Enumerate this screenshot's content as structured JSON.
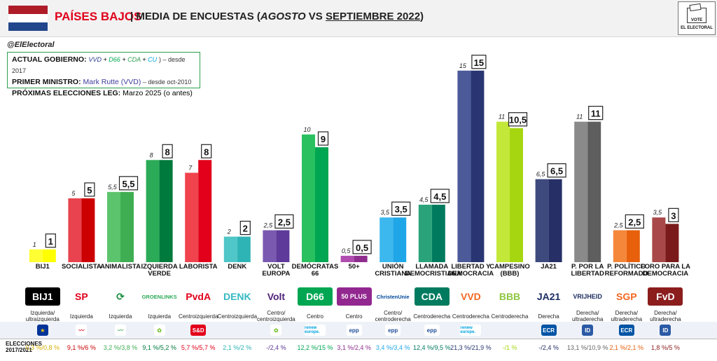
{
  "header": {
    "title": "PAÍSES BAJOS",
    "sep": "|",
    "subtitle_a": "MEDIA DE ENCUESTAS (",
    "subtitle_b": "AGOSTO",
    "subtitle_c": " VS ",
    "subtitle_d": "SEPTIEMBRE 2022",
    "subtitle_e": ")",
    "vote_text": "VOTE",
    "brand": "EL ELECTORAL"
  },
  "handle": "@ElElectoral",
  "info": {
    "gov_label": "ACTUAL GOBIERNO:",
    "gov_vvd": "VVD",
    "gov_d66": "D66",
    "gov_cda": "CDA",
    "gov_cu": "CU",
    "gov_plus": "+",
    "gov_tail": ") – desde 2017",
    "pm_label": "PRIMER MINISTRO:",
    "pm_value": "Mark Rutte (VVD)",
    "pm_date": " – desde oct-2010",
    "elec_label": "PRÓXIMAS ELECCIONES LEG:",
    "elec_value": "Marzo 2025 (o antes)"
  },
  "colors": {
    "flag_red": "#ae1c28",
    "flag_white": "#ffffff",
    "flag_blue": "#21468b"
  },
  "chart_data": {
    "type": "bar",
    "categories": [
      "BIJ1",
      "SOCIALISTA",
      "ANIMALISTA",
      "IZQUIERDA VERDE",
      "LABORISTA",
      "DENK",
      "VOLT EUROPA",
      "DEMÓCRATAS 66",
      "50+",
      "UNIÓN CRISTIANA",
      "LLAMADA DEMOCRISTIANA",
      "LIBERTAD Y DEMOCRACIA",
      "CAMPESINO (BBB)",
      "JA21",
      "P. POR LA LIBERTAD",
      "P. POLÍTICO REFORMADO",
      "FORO PARA LA DEMOCRACIA"
    ],
    "series": [
      {
        "name": "AGOSTO",
        "values": [
          1,
          5,
          5.5,
          8,
          7,
          2,
          2.5,
          10,
          0.5,
          3.5,
          4.5,
          15,
          11,
          6.5,
          11,
          2.5,
          3.5
        ]
      },
      {
        "name": "SEPTIEMBRE 2022",
        "values": [
          1,
          5,
          5.5,
          8,
          8,
          2,
          2.5,
          9,
          0.5,
          3.5,
          4.5,
          15,
          10.5,
          6.5,
          11,
          2.5,
          3
        ]
      }
    ],
    "value_labels_prev": [
      "1",
      "5",
      "5,5",
      "8",
      "7",
      "2",
      "2,5",
      "10",
      "0,5",
      "3,5",
      "4,5",
      "15",
      "11",
      "6,5",
      "11",
      "2,5",
      "3,5"
    ],
    "value_labels_curr": [
      "1",
      "5",
      "5,5",
      "8",
      "8",
      "2",
      "2,5",
      "9",
      "0,5",
      "3,5",
      "4,5",
      "15",
      "10,5",
      "6,5",
      "11",
      "2,5",
      "3"
    ],
    "colors_light": [
      "#ffff33",
      "#e8434e",
      "#5cc46c",
      "#2bab57",
      "#f0434e",
      "#4fc6c8",
      "#7a5ab0",
      "#29c05f",
      "#b04cb0",
      "#3cb8ee",
      "#2aa37a",
      "#4c5a9a",
      "#c4e83a",
      "#3e4a7e",
      "#8a8a8a",
      "#f5873a",
      "#a84848"
    ],
    "colors_dark": [
      "#ffff00",
      "#cc0000",
      "#3fae52",
      "#007a3d",
      "#e2001a",
      "#2fb4b6",
      "#5e3a9a",
      "#00a651",
      "#8e2d8e",
      "#1fa6e8",
      "#007a5e",
      "#283572",
      "#a6d610",
      "#262f66",
      "#5e5e5e",
      "#e8600c",
      "#7a1a1a"
    ],
    "ylim": [
      0,
      15.7
    ]
  },
  "labels_display": [
    "BIJ1",
    "SOCIALISTA",
    "ANIMALISTA",
    "IZQUIERDA\nVERDE",
    "LABORISTA",
    "DENK",
    "VOLT\nEUROPA",
    "DEMÓCRATAS\n66",
    "50+",
    "UNIÓN\nCRISTIANA",
    "LLAMADA\nDEMOCRISTIANA",
    "LIBERTAD Y\nDEMOCRACIA",
    "CAMPESINO\n(BBB)",
    "JA21",
    "P. POR LA\nLIBERTAD",
    "P. POLÍTICO\nREFORMADO",
    "FORO PARA LA\nDEMOCRACIA"
  ],
  "logos": [
    {
      "text": "BIJ1",
      "fg": "#ffffff",
      "bg": "#000000"
    },
    {
      "text": "SP",
      "fg": "#e2001a",
      "bg": "#ffffff"
    },
    {
      "text": "⟳",
      "fg": "#0f8a3a",
      "bg": "#ffffff"
    },
    {
      "text": "GROENLINKS",
      "fg": "#2bab57",
      "bg": "#ffffff"
    },
    {
      "text": "PvdA",
      "fg": "#e2001a",
      "bg": "#ffffff"
    },
    {
      "text": "DENK",
      "fg": "#35b9c2",
      "bg": "#ffffff"
    },
    {
      "text": "Volt",
      "fg": "#502379",
      "bg": "#ffffff"
    },
    {
      "text": "D66",
      "fg": "#ffffff",
      "bg": "#00a651"
    },
    {
      "text": "50 PLUS",
      "fg": "#ffffff",
      "bg": "#92278f"
    },
    {
      "text": "ChristenUnie",
      "fg": "#00489a",
      "bg": "#ffffff"
    },
    {
      "text": "CDA",
      "fg": "#ffffff",
      "bg": "#007b5f"
    },
    {
      "text": "VVD",
      "fg": "#f26722",
      "bg": "#ffffff"
    },
    {
      "text": "BBB",
      "fg": "#8dc63f",
      "bg": "#ffffff"
    },
    {
      "text": "JA21",
      "fg": "#1b2d61",
      "bg": "#ffffff"
    },
    {
      "text": "VRIJHEID",
      "fg": "#1b2d61",
      "bg": "#ffffff"
    },
    {
      "text": "SGP",
      "fg": "#f26722",
      "bg": "#ffffff"
    },
    {
      "text": "FvD",
      "fg": "#ffffff",
      "bg": "#8b1d1d"
    }
  ],
  "ideologies": [
    "Izquierda/\nultraizquierda",
    "Izquierda",
    "Izquierda",
    "Izquierda",
    "Centroizquierda",
    "Centroizquierda",
    "Centro/\ncentroizquierda",
    "Centro",
    "Centro",
    "Centro/\ncentroderecha",
    "Centroderecha",
    "Centroderecha",
    "Centroderecha",
    "Derecha",
    "Derecha/\nultraderecha",
    "Derecha/\nultraderecha",
    "Derecha/\nultraderecha"
  ],
  "eu_groups": [
    {
      "text": "★",
      "fg": "#ffcc00",
      "bg": "#003399"
    },
    {
      "text": "〰",
      "fg": "#e2001a",
      "bg": "#ffffff"
    },
    {
      "text": "〰",
      "fg": "#3fae52",
      "bg": "#ffffff"
    },
    {
      "text": "✿",
      "fg": "#57b400",
      "bg": "#ffffff"
    },
    {
      "text": "S&D",
      "fg": "#ffffff",
      "bg": "#e2001a"
    },
    {
      "text": "",
      "fg": "#000000",
      "bg": "transparent"
    },
    {
      "text": "✿",
      "fg": "#57b400",
      "bg": "#ffffff"
    },
    {
      "text": "renew europe.",
      "fg": "#00a3e0",
      "bg": "#ffffff"
    },
    {
      "text": "epp",
      "fg": "#1f4e99",
      "bg": "#ffffff"
    },
    {
      "text": "epp",
      "fg": "#1f4e99",
      "bg": "#ffffff"
    },
    {
      "text": "epp",
      "fg": "#1f4e99",
      "bg": "#ffffff"
    },
    {
      "text": "renew europe.",
      "fg": "#00a3e0",
      "bg": "#ffffff"
    },
    {
      "text": "",
      "fg": "#000000",
      "bg": "transparent"
    },
    {
      "text": "ECR",
      "fg": "#ffffff",
      "bg": "#0054a5"
    },
    {
      "text": "ID",
      "fg": "#ffffff",
      "bg": "#2b5aa5"
    },
    {
      "text": "ECR",
      "fg": "#ffffff",
      "bg": "#0054a5"
    },
    {
      "text": "ID",
      "fg": "#ffffff",
      "bg": "#2b5aa5"
    }
  ],
  "elections_label": "ELECCIONES\n2017/2021",
  "election_results": [
    {
      "text": "0,3 %/0,8 %",
      "color": "#d4b000"
    },
    {
      "text": "9,1 %/6 %",
      "color": "#cc0000"
    },
    {
      "text": "3,2 %/3,8 %",
      "color": "#3fae52"
    },
    {
      "text": "9,1 %/5,2 %",
      "color": "#007a3d"
    },
    {
      "text": "5,7 %/5,7 %",
      "color": "#e2001a"
    },
    {
      "text": "2,1 %/2 %",
      "color": "#2fb4b6"
    },
    {
      "text": "-/2,4 %",
      "color": "#5e3a9a"
    },
    {
      "text": "12,2 %/15 %",
      "color": "#00a651"
    },
    {
      "text": "3,1 %/2,4 %",
      "color": "#8e2d8e"
    },
    {
      "text": "3,4 %/3,4 %",
      "color": "#1fa6e8"
    },
    {
      "text": "12,4 %/9,5 %",
      "color": "#007a5e"
    },
    {
      "text": "21,3 %/21,9 %",
      "color": "#283572"
    },
    {
      "text": "-/1 %",
      "color": "#a6d610"
    },
    {
      "text": "-/2,4 %",
      "color": "#262f66"
    },
    {
      "text": "13,1 %/10,9 %",
      "color": "#666666"
    },
    {
      "text": "2,1 %/2,1 %",
      "color": "#e8600c"
    },
    {
      "text": "1,8 %/5 %",
      "color": "#8b1d1d"
    }
  ]
}
